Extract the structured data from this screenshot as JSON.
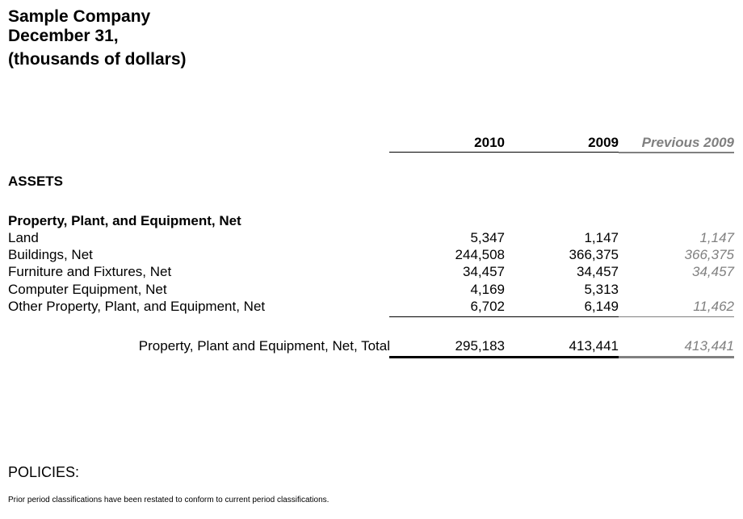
{
  "header": {
    "company": "Sample Company",
    "date": "December 31,",
    "units": "(thousands of dollars)"
  },
  "columns": [
    "2010",
    "2009",
    "Previous 2009"
  ],
  "section": "ASSETS",
  "group": "Property, Plant, and Equipment, Net",
  "rows": [
    {
      "label": "Land",
      "v2010": "5,347",
      "v2009": "1,147",
      "prev": "1,147"
    },
    {
      "label": "Buildings, Net",
      "v2010": "244,508",
      "v2009": "366,375",
      "prev": "366,375"
    },
    {
      "label": "Furniture and Fixtures, Net",
      "v2010": "34,457",
      "v2009": "34,457",
      "prev": "34,457"
    },
    {
      "label": "Computer Equipment, Net",
      "v2010": "4,169",
      "v2009": "5,313",
      "prev": ""
    },
    {
      "label": "Other Property, Plant, and Equipment, Net",
      "v2010": "6,702",
      "v2009": "6,149",
      "prev": "11,462"
    }
  ],
  "total": {
    "label": "Property, Plant and Equipment, Net, Total",
    "v2010": "295,183",
    "v2009": "413,441",
    "prev": "413,441"
  },
  "policies": {
    "heading": "POLICIES:",
    "text": "Prior period classifications have been restated to conform to current period classifications."
  }
}
